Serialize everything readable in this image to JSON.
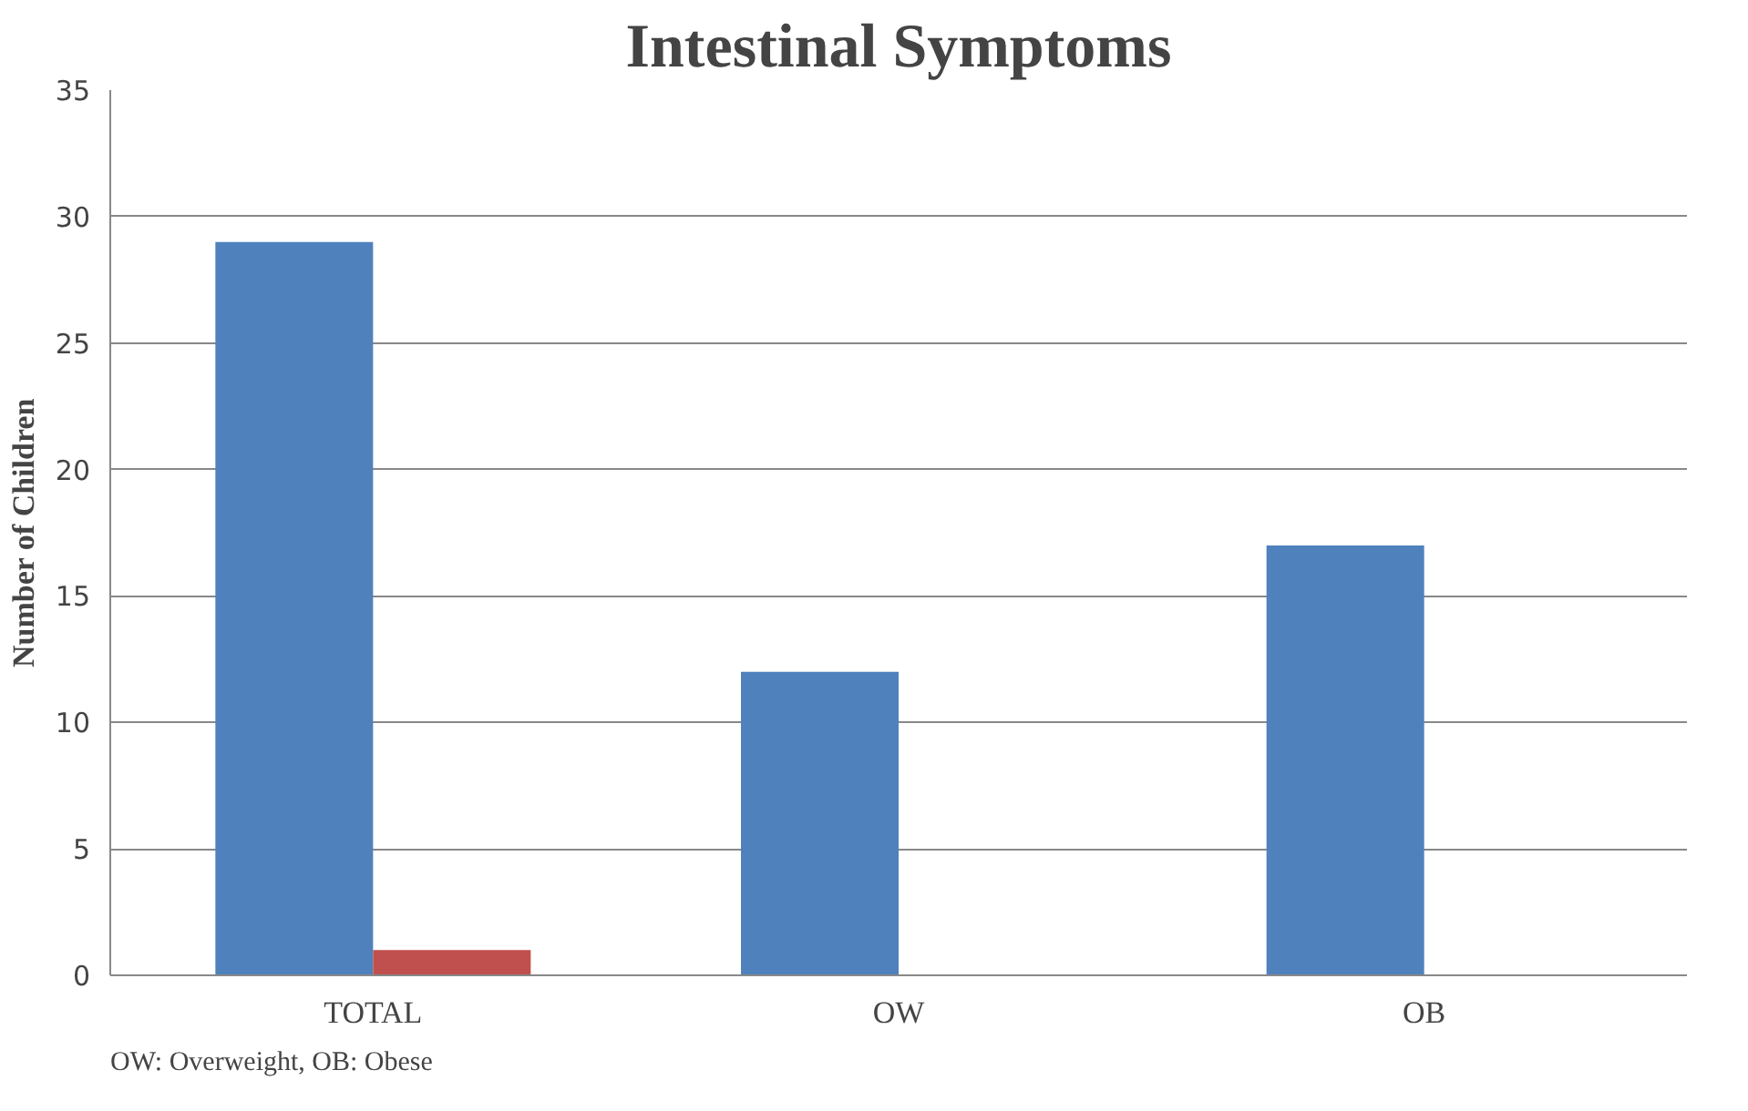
{
  "chart_data": {
    "type": "bar",
    "title": "Intestinal Symptoms",
    "ylabel": "Number of Children",
    "categories": [
      "TOTAL",
      "OW",
      "OB"
    ],
    "series": [
      {
        "color": "#4f81bd",
        "values": [
          29,
          12,
          17
        ]
      },
      {
        "color": "#c0504d",
        "values": [
          1,
          0,
          null
        ]
      }
    ],
    "ylim": [
      0,
      35
    ],
    "yticks": [
      0,
      5,
      10,
      15,
      20,
      25,
      30,
      35
    ],
    "grid": "y",
    "annotations": [
      "OW: Overweight, OB: Obese"
    ]
  }
}
